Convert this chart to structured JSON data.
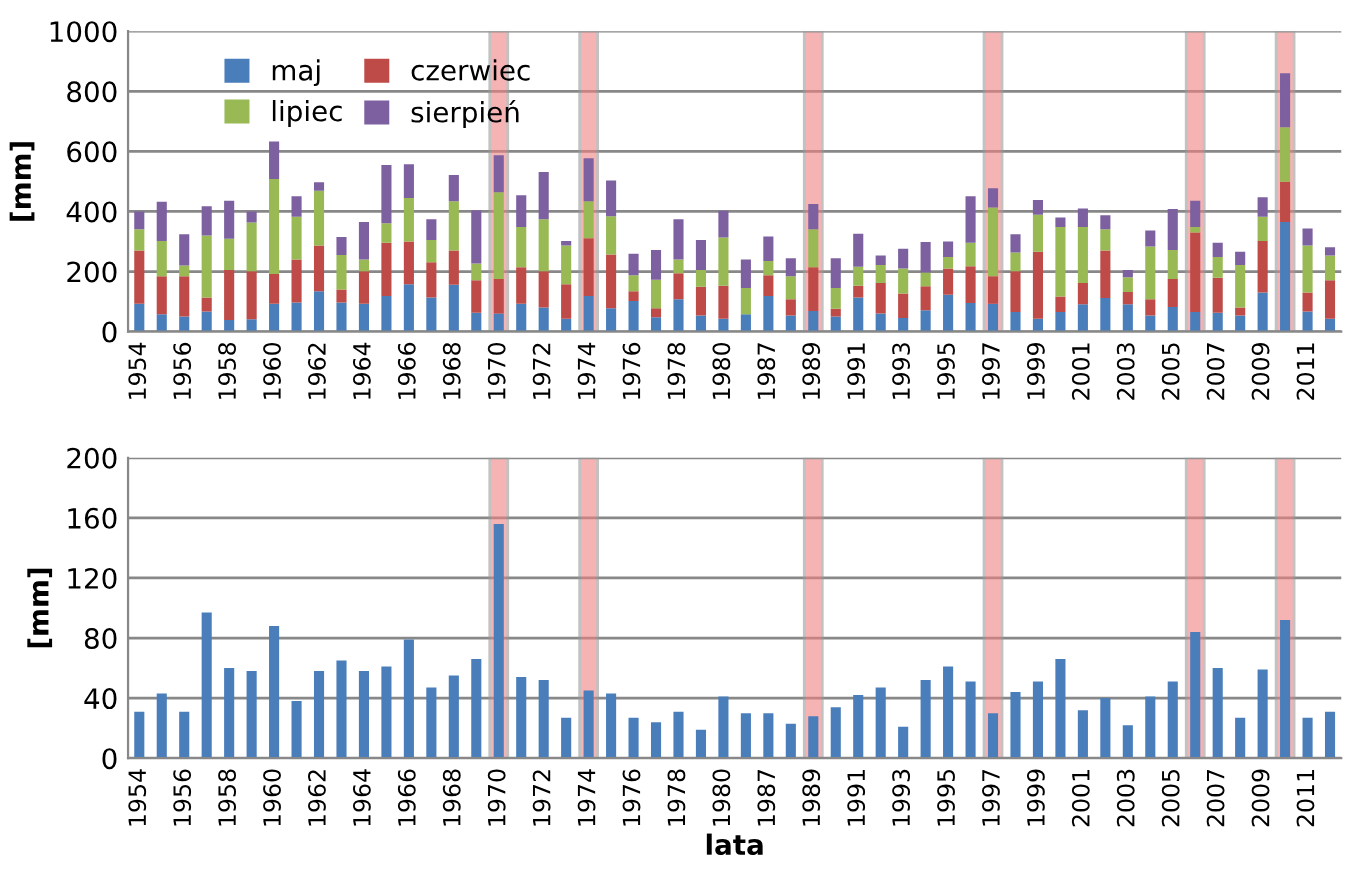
{
  "chart_data": [
    {
      "type": "bar",
      "stacked": true,
      "ylabel": "[mm]",
      "categories": [
        "1954",
        null,
        "1956",
        null,
        "1958",
        null,
        "1960",
        null,
        "1962",
        null,
        "1964",
        null,
        "1966",
        null,
        "1968",
        null,
        "1970",
        null,
        "1972",
        null,
        "1974",
        null,
        "1976",
        null,
        "1978",
        null,
        "1980",
        null,
        "1987",
        null,
        "1989",
        null,
        "1991",
        null,
        "1993",
        null,
        "1995",
        null,
        "1997",
        null,
        "1999",
        null,
        "2001",
        null,
        "2003",
        null,
        "2005",
        null,
        "2007",
        null,
        "2009",
        null,
        "2011",
        null
      ],
      "series": [
        {
          "name": "maj",
          "color": "#4a7ebb",
          "values": [
            93,
            58,
            50,
            67,
            39,
            41,
            93,
            97,
            134,
            97,
            93,
            119,
            158,
            114,
            156,
            63,
            60,
            93,
            80,
            43,
            119,
            78,
            102,
            48,
            108,
            54,
            43,
            58,
            119,
            54,
            69,
            50,
            114,
            60,
            45,
            71,
            123,
            95,
            93,
            65,
            43,
            65,
            91,
            112,
            91,
            54,
            82,
            65,
            63,
            54,
            130,
            365,
            67,
            43
          ]
        },
        {
          "name": "czerwiec",
          "color": "#be4b48",
          "values": [
            177,
            126,
            134,
            47,
            166,
            160,
            99,
            143,
            153,
            43,
            108,
            177,
            142,
            117,
            114,
            108,
            115,
            121,
            121,
            115,
            192,
            179,
            32,
            30,
            86,
            95,
            110,
            0,
            69,
            54,
            145,
            26,
            39,
            102,
            82,
            80,
            87,
            123,
            91,
            136,
            223,
            52,
            71,
            158,
            41,
            54,
            93,
            265,
            116,
            26,
            172,
            134,
            63,
            128
          ]
        },
        {
          "name": "lipiec",
          "color": "#98b954",
          "values": [
            71,
            118,
            36,
            206,
            104,
            162,
            316,
            142,
            182,
            115,
            39,
            65,
            145,
            74,
            164,
            56,
            289,
            134,
            173,
            129,
            123,
            127,
            54,
            95,
            46,
            56,
            160,
            87,
            47,
            76,
            127,
            69,
            63,
            60,
            83,
            46,
            38,
            78,
            229,
            62,
            123,
            231,
            186,
            71,
            49,
            175,
            97,
            18,
            69,
            142,
            80,
            181,
            157,
            82
          ]
        },
        {
          "name": "sierpień",
          "color": "#7d60a0",
          "values": [
            59,
            130,
            104,
            97,
            127,
            37,
            125,
            69,
            28,
            60,
            125,
            194,
            112,
            69,
            87,
            177,
            123,
            106,
            157,
            15,
            143,
            119,
            71,
            99,
            134,
            100,
            89,
            95,
            82,
            60,
            84,
            99,
            110,
            31,
            66,
            101,
            52,
            155,
            64,
            61,
            49,
            32,
            62,
            46,
            24,
            54,
            136,
            88,
            48,
            44,
            65,
            180,
            56,
            28
          ]
        }
      ],
      "ylim": [
        0,
        1000
      ],
      "yticks": [
        0,
        200,
        400,
        600,
        800,
        1000
      ],
      "grid": "y",
      "legend": "top left",
      "bands": [
        {
          "axis": "x",
          "from": "1970",
          "to": "1970",
          "color": "#f08080"
        },
        {
          "axis": "x",
          "from": "1974",
          "to": "1974",
          "color": "#f08080"
        },
        {
          "axis": "x",
          "from": "1989",
          "to": "1989",
          "color": "#f08080"
        },
        {
          "axis": "x",
          "from": "1997",
          "to": "1997",
          "color": "#f08080"
        },
        {
          "axis": "x",
          "from": "2005",
          "to": "2007",
          "color": "#f08080"
        },
        {
          "axis": "x",
          "from": "2009",
          "to": "2011",
          "color": "#f08080"
        }
      ]
    },
    {
      "type": "bar",
      "ylabel": "[mm]",
      "xlabel": "lata",
      "categories": [
        "1954",
        null,
        "1956",
        null,
        "1958",
        null,
        "1960",
        null,
        "1962",
        null,
        "1964",
        null,
        "1966",
        null,
        "1968",
        null,
        "1970",
        null,
        "1972",
        null,
        "1974",
        null,
        "1976",
        null,
        "1978",
        null,
        "1980",
        null,
        "1987",
        null,
        "1989",
        null,
        "1991",
        null,
        "1993",
        null,
        "1995",
        null,
        "1997",
        null,
        "1999",
        null,
        "2001",
        null,
        "2003",
        null,
        "2005",
        null,
        "2007",
        null,
        "2009",
        null,
        "2011",
        null
      ],
      "series": [
        {
          "color": "#4a7ebb",
          "values": [
            31,
            43,
            31,
            97,
            60,
            58,
            88,
            38,
            58,
            65,
            58,
            61,
            79,
            47,
            55,
            66,
            156,
            54,
            52,
            27,
            45,
            43,
            27,
            24,
            31,
            19,
            41,
            30,
            30,
            23,
            28,
            34,
            42,
            47,
            21,
            52,
            61,
            51,
            30,
            44,
            51,
            66,
            32,
            40,
            22,
            41,
            51,
            84,
            60,
            27,
            59,
            92,
            27,
            31
          ]
        }
      ],
      "ylim": [
        0,
        200
      ],
      "yticks": [
        0,
        40,
        80,
        120,
        160,
        200
      ],
      "grid": "y",
      "bands": [
        {
          "axis": "x",
          "from": "1970",
          "to": "1970",
          "color": "#f08080"
        },
        {
          "axis": "x",
          "from": "1974",
          "to": "1974",
          "color": "#f08080"
        },
        {
          "axis": "x",
          "from": "1989",
          "to": "1989",
          "color": "#f08080"
        },
        {
          "axis": "x",
          "from": "1997",
          "to": "1997",
          "color": "#f08080"
        },
        {
          "axis": "x",
          "from": "2005",
          "to": "2007",
          "color": "#f08080"
        },
        {
          "axis": "x",
          "from": "2009",
          "to": "2011",
          "color": "#f08080"
        }
      ]
    }
  ]
}
